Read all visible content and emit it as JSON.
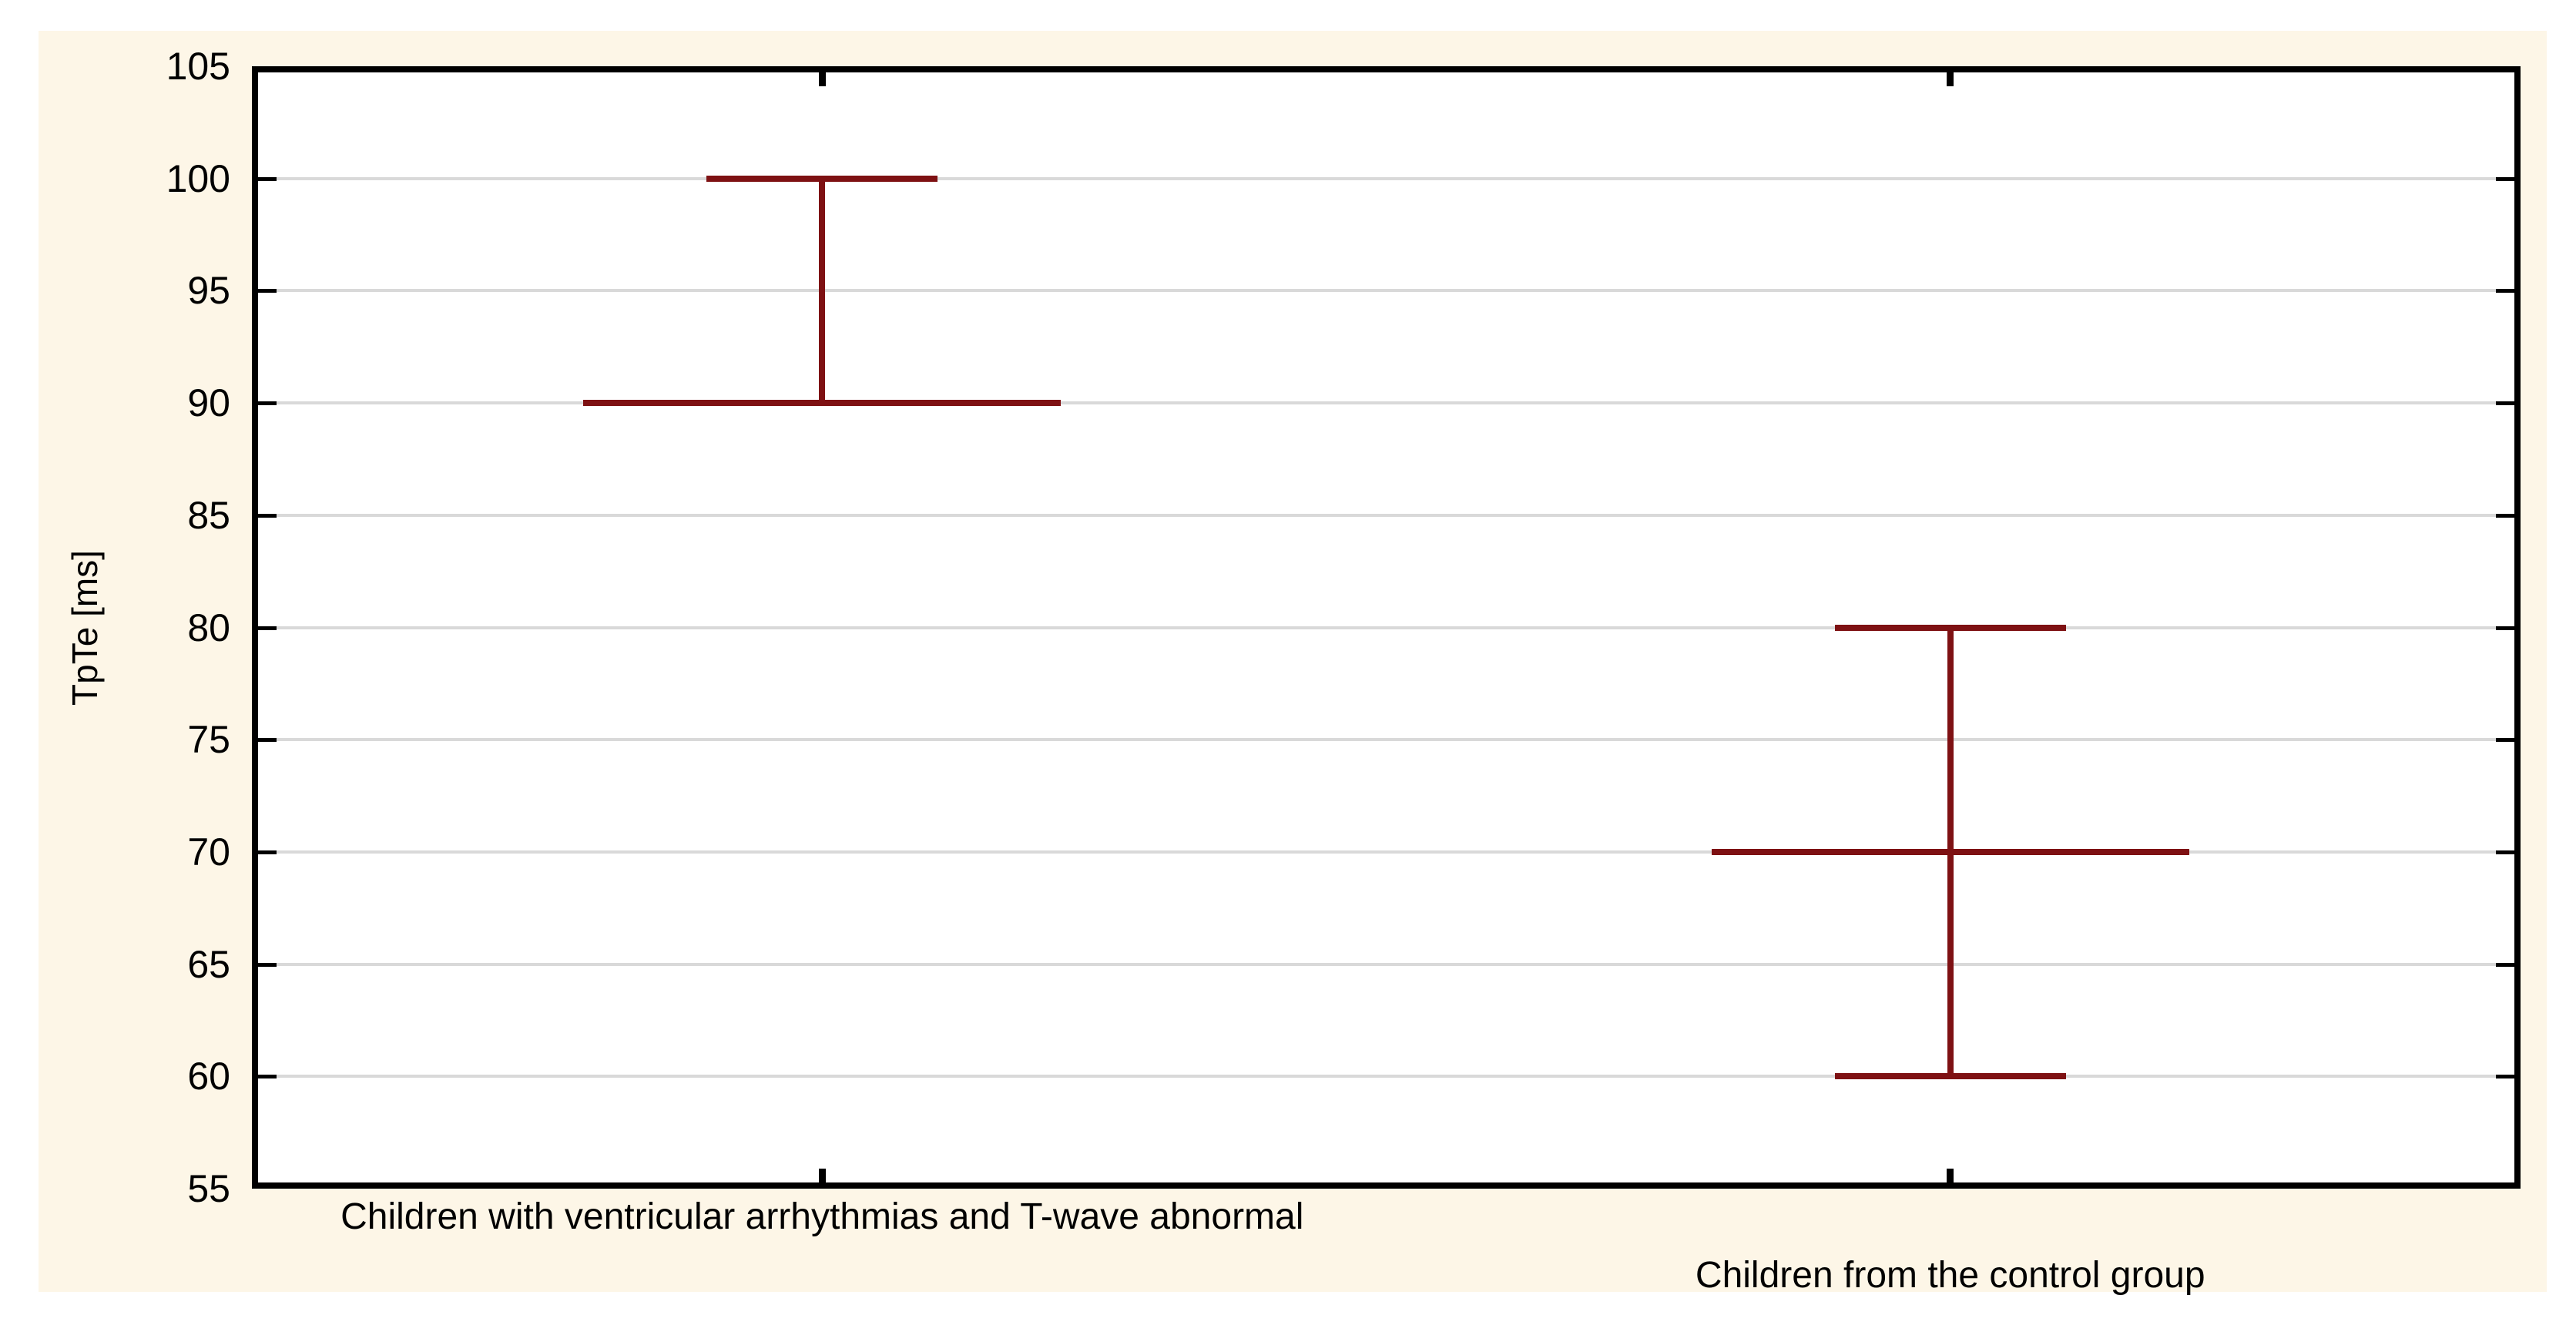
{
  "chart_data": {
    "type": "box-whisker",
    "title": "",
    "xlabel": "",
    "ylabel": "TpTe [ms]",
    "ylim": [
      55,
      105
    ],
    "yticks": [
      105,
      100,
      95,
      90,
      85,
      80,
      75,
      70,
      65,
      60,
      55
    ],
    "grid": "horizontal-only",
    "legend": "none",
    "plot_background": "#FFFFFF",
    "figure_background": "#FDF6E7",
    "gridline_color": "#D9D9D9",
    "whisker_color": "#7E1113",
    "categories": [
      "Children with ventricular arrhythmias and T-wave abnormal",
      "Children from the control group"
    ],
    "series": [
      {
        "category": "Children with ventricular arrhythmias and T-wave abnormal",
        "center_line": 90,
        "whisker_low": 90,
        "whisker_high": 100
      },
      {
        "category": "Children from the control group",
        "center_line": 70,
        "whisker_low": 60,
        "whisker_high": 80
      }
    ]
  }
}
